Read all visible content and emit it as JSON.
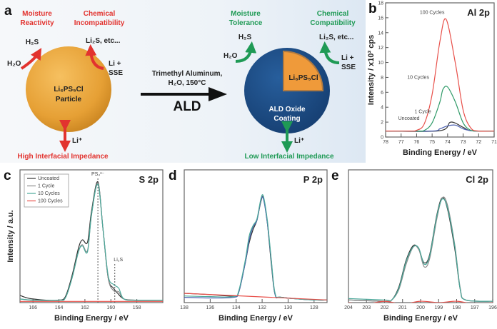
{
  "panel_a": {
    "label": "a",
    "left": {
      "moisture": [
        "Moisture",
        "Reactivity"
      ],
      "chemical": [
        "Chemical",
        "Incompatibility"
      ],
      "h2s": "H₂S",
      "h2o": "H₂O",
      "li2s": "Li₂S, etc...",
      "li_sse": [
        "Li +",
        "SSE"
      ],
      "particle": [
        "Li₆PS₅Cl",
        "Particle"
      ],
      "li_ion": "Li⁺",
      "impedance": "High Interfacial Impedance"
    },
    "arrow": {
      "conditions": [
        "Trimethyl Aluminum,",
        "H₂O, 150°C"
      ],
      "method": "ALD"
    },
    "right": {
      "moisture": [
        "Moisture",
        "Tolerance"
      ],
      "chemical": [
        "Chemical",
        "Compatibility"
      ],
      "h2s": "H₂S",
      "h2o": "H₂O",
      "li2s": "Li₂S, etc...",
      "li_sse": [
        "Li +",
        "SSE"
      ],
      "core": "Li₆PS₅Cl",
      "coating": [
        "ALD Oxide",
        "Coating"
      ],
      "li_ion": "Li⁺",
      "impedance": "Low Interfacial Impedance"
    },
    "colors": {
      "bad": "#e2332f",
      "good": "#1f9a55",
      "particle": "#f0a030",
      "coating": "#1d4f8c"
    }
  },
  "chart_data": [
    {
      "id": "b",
      "panel_label": "b",
      "type": "line",
      "title": "Al 2p",
      "xlabel": "Binding Energy / eV",
      "ylabel": "Intensity / x10³ cps",
      "xlim": [
        78,
        71
      ],
      "ylim": [
        0,
        18
      ],
      "xticks": [
        78,
        77,
        76,
        75,
        74,
        73,
        72,
        71
      ],
      "yticks": [
        0,
        2,
        4,
        6,
        8,
        10,
        12,
        14,
        16,
        18
      ],
      "series": [
        {
          "name": "Uncoated",
          "color": "#333333",
          "x": [
            78,
            74.5,
            73.8,
            73,
            72.5,
            71
          ],
          "y": [
            0.8,
            0.85,
            2.0,
            1.3,
            0.85,
            0.8
          ]
        },
        {
          "name": "1 Cycle",
          "color": "#4a5fb0",
          "x": [
            78,
            75,
            74.5,
            74,
            73.5,
            73,
            72.5,
            72,
            71
          ],
          "y": [
            0.8,
            0.8,
            1.1,
            1.5,
            1.6,
            1.1,
            0.85,
            0.8,
            0.8
          ]
        },
        {
          "name": "10 Cycles",
          "color": "#2f9a68",
          "x": [
            78,
            76,
            75.5,
            75,
            74.5,
            74.3,
            74,
            73.5,
            73,
            72.5,
            72,
            71
          ],
          "y": [
            0.8,
            0.8,
            0.9,
            1.9,
            4.7,
            6.4,
            6.7,
            4.7,
            1.9,
            0.9,
            0.8,
            0.8
          ]
        },
        {
          "name": "100 Cycles",
          "color": "#e8504a",
          "x": [
            78,
            76.5,
            76,
            75.5,
            75,
            74.5,
            74.1,
            73.5,
            73,
            72.5,
            72,
            71
          ],
          "y": [
            0.8,
            0.8,
            0.9,
            1.8,
            5.7,
            12.8,
            15.8,
            9.9,
            3.6,
            1.2,
            0.8,
            0.8
          ]
        }
      ],
      "series_labels": [
        "Uncoated",
        "1 Cycle",
        "10 Cycles",
        "100 Cycles"
      ]
    },
    {
      "id": "c",
      "panel_label": "c",
      "type": "line",
      "title": "S 2p",
      "xlabel": "Binding Energy / eV",
      "ylabel": "Intensity / a.u.",
      "xlim": [
        167,
        156
      ],
      "ylim": [
        0,
        1.1
      ],
      "xticks": [
        166,
        164,
        162,
        160,
        158
      ],
      "legend": "top-left",
      "annotations": [
        {
          "text": "PS₄³⁻",
          "x": 161.0
        },
        {
          "text": "Li₂S",
          "x": 159.7
        }
      ],
      "series": [
        {
          "name": "Uncoated",
          "color": "#333333",
          "x": [
            167,
            166.5,
            166,
            165,
            164,
            163.5,
            163,
            162.5,
            162.2,
            161.8,
            161.5,
            161,
            160.6,
            160.2,
            159.8,
            159.5,
            159,
            158,
            156
          ],
          "y": [
            0.06,
            0.04,
            0.03,
            0.02,
            0.02,
            0.05,
            0.22,
            0.45,
            0.52,
            0.5,
            0.75,
            1.0,
            0.6,
            0.2,
            0.12,
            0.08,
            0.03,
            0.02,
            0.02
          ]
        },
        {
          "name": "1 Cycle",
          "color": "#8a8a8a",
          "x": [
            167,
            166,
            164,
            163.5,
            163,
            162.5,
            162.2,
            161.8,
            161.5,
            161,
            160.6,
            160.2,
            159.8,
            159.4,
            159,
            158,
            156
          ],
          "y": [
            0.03,
            0.02,
            0.02,
            0.04,
            0.2,
            0.42,
            0.48,
            0.43,
            0.72,
            0.99,
            0.6,
            0.2,
            0.1,
            0.09,
            0.03,
            0.02,
            0.02
          ]
        },
        {
          "name": "10 Cycles",
          "color": "#4aa89a",
          "x": [
            167,
            166,
            164,
            163.5,
            163,
            162.5,
            162.2,
            161.8,
            161.5,
            161,
            160.6,
            160.2,
            159.8,
            159.4,
            159,
            158,
            156
          ],
          "y": [
            0.03,
            0.02,
            0.02,
            0.04,
            0.2,
            0.42,
            0.47,
            0.42,
            0.72,
            0.98,
            0.6,
            0.22,
            0.15,
            0.12,
            0.03,
            0.02,
            0.02
          ]
        },
        {
          "name": "100 Cycles",
          "color": "#e8504a",
          "x": [
            167,
            156
          ],
          "y": [
            0.01,
            0.01
          ]
        }
      ]
    },
    {
      "id": "d",
      "panel_label": "d",
      "type": "line",
      "title": "P 2p",
      "xlabel": "Binding Energy / eV",
      "ylabel": "",
      "xlim": [
        138,
        127
      ],
      "ylim": [
        0,
        1
      ],
      "xticks": [
        138,
        136,
        134,
        132,
        130,
        128
      ],
      "series": [
        {
          "name": "Uncoated",
          "color": "#333333",
          "x": [
            138,
            136,
            134.2,
            133.8,
            133.3,
            133,
            132.7,
            132.4,
            132.1,
            131.9,
            131.6,
            131.3,
            131,
            130.5,
            128,
            127
          ],
          "y": [
            0.07,
            0.06,
            0.05,
            0.08,
            0.3,
            0.45,
            0.55,
            0.62,
            0.76,
            0.79,
            0.6,
            0.3,
            0.06,
            0.04,
            0.02,
            0.02
          ]
        },
        {
          "name": "1 Cycle",
          "color": "#4a5fb0",
          "x": [
            138,
            136,
            134.2,
            133.8,
            133.3,
            133,
            132.7,
            132.4,
            132.1,
            131.9,
            131.6,
            131.3,
            131,
            130.5,
            128,
            127
          ],
          "y": [
            0.04,
            0.035,
            0.04,
            0.08,
            0.3,
            0.47,
            0.57,
            0.62,
            0.77,
            0.78,
            0.6,
            0.32,
            0.06,
            0.04,
            0.02,
            0.02
          ]
        },
        {
          "name": "10 Cycles",
          "color": "#4aa89a",
          "x": [
            138,
            136,
            134.2,
            133.8,
            133.3,
            133,
            132.7,
            132.4,
            132.1,
            131.9,
            131.6,
            131.3,
            131,
            130.5,
            128,
            127
          ],
          "y": [
            0.05,
            0.045,
            0.045,
            0.09,
            0.32,
            0.5,
            0.58,
            0.63,
            0.78,
            0.8,
            0.62,
            0.33,
            0.07,
            0.04,
            0.02,
            0.02
          ]
        },
        {
          "name": "100 Cycles",
          "color": "#e8504a",
          "x": [
            138,
            127
          ],
          "y": [
            0.07,
            0.02
          ]
        }
      ]
    },
    {
      "id": "e",
      "panel_label": "e",
      "type": "line",
      "title": "Cl 2p",
      "xlabel": "Binding Energy / eV",
      "ylabel": "",
      "xlim": [
        204,
        196
      ],
      "ylim": [
        0,
        1
      ],
      "xticks": [
        204,
        203,
        202,
        201,
        200,
        199,
        198,
        197,
        196
      ],
      "series": [
        {
          "name": "Uncoated",
          "color": "#333333",
          "x": [
            204,
            202,
            201.6,
            201.2,
            200.8,
            200.4,
            200.1,
            199.8,
            199.5,
            199.1,
            198.8,
            198.5,
            198.1,
            197.8,
            197.5,
            196
          ],
          "y": [
            0.02,
            0.01,
            0.02,
            0.12,
            0.32,
            0.43,
            0.4,
            0.3,
            0.36,
            0.66,
            0.79,
            0.7,
            0.4,
            0.1,
            0.02,
            0.01
          ]
        },
        {
          "name": "1 Cycle",
          "color": "#8a8a8a",
          "x": [
            204,
            202,
            201.6,
            201.2,
            200.8,
            200.4,
            200.1,
            199.8,
            199.5,
            199.1,
            198.8,
            198.5,
            198.1,
            197.8,
            197.5,
            196
          ],
          "y": [
            0.02,
            0.01,
            0.02,
            0.1,
            0.29,
            0.42,
            0.4,
            0.27,
            0.33,
            0.63,
            0.79,
            0.73,
            0.43,
            0.11,
            0.02,
            0.01
          ]
        },
        {
          "name": "10 Cycles",
          "color": "#4aa89a",
          "x": [
            204,
            202,
            201.6,
            201.2,
            200.8,
            200.4,
            200.1,
            199.8,
            199.5,
            199.1,
            198.8,
            198.5,
            198.1,
            197.8,
            197.5,
            196
          ],
          "y": [
            0.03,
            0.02,
            0.02,
            0.11,
            0.31,
            0.42,
            0.41,
            0.29,
            0.35,
            0.65,
            0.78,
            0.71,
            0.42,
            0.1,
            0.02,
            0.01
          ]
        },
        {
          "name": "100 Cycles",
          "color": "#e8504a",
          "x": [
            204,
            203,
            202,
            201,
            200,
            199,
            198,
            197,
            196
          ],
          "y": [
            0.0,
            -0.01,
            0.01,
            -0.01,
            0.01,
            0.0,
            0.01,
            -0.01,
            0.0
          ]
        }
      ]
    }
  ]
}
